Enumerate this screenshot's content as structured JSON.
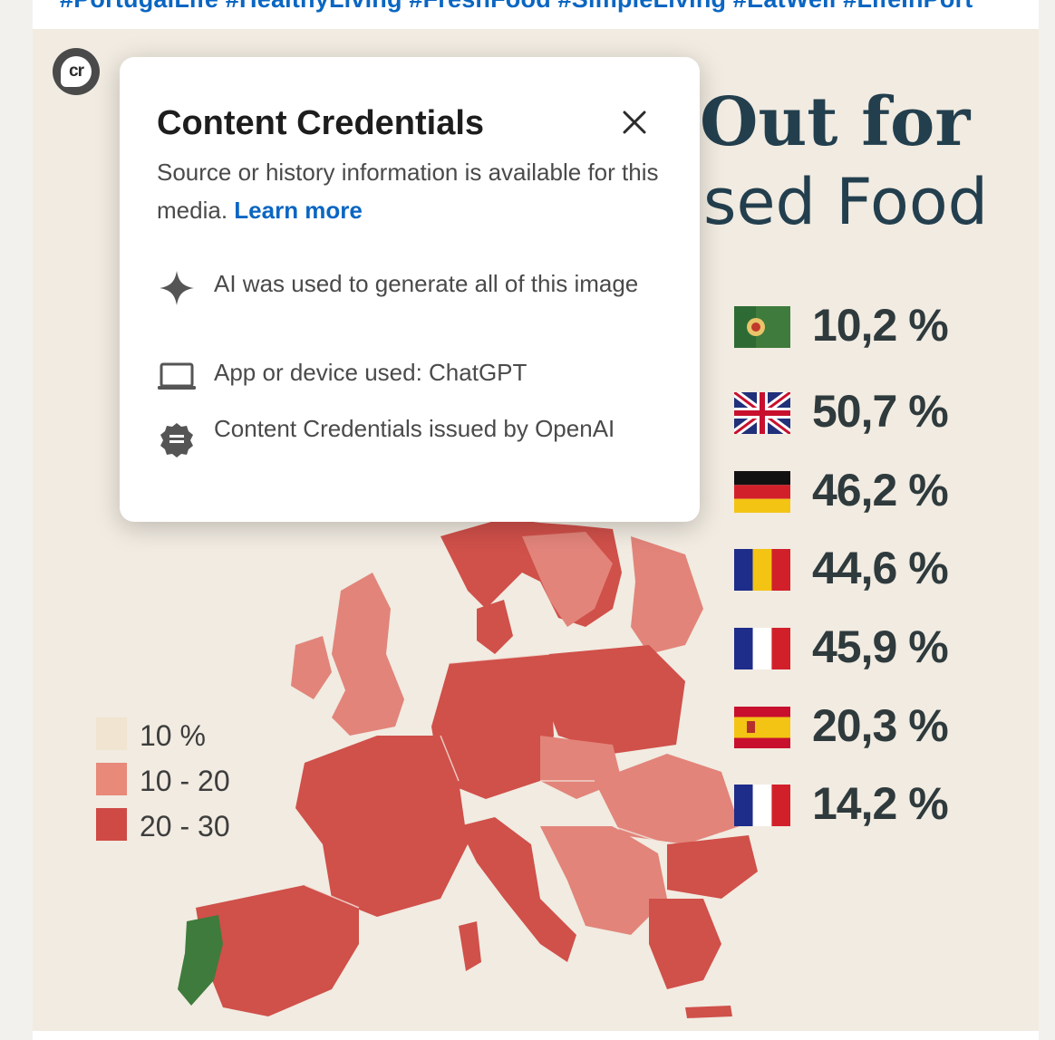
{
  "post": {
    "hashtags": "#PortugalLife #HealthyLiving #FreshFood #SimpleLiving #EatWell #LifeInPort"
  },
  "infographic": {
    "headline_line1": "Out for",
    "headline_line2": "sed Food",
    "legend": [
      {
        "label": "10 %",
        "color": "#f1e4d0"
      },
      {
        "label": "10 - 20",
        "color": "#e8897a"
      },
      {
        "label": "20 - 30",
        "color": "#cf4a45"
      }
    ],
    "stats": [
      {
        "flag": "portugal-flag-icon",
        "value": "10,2 %"
      },
      {
        "flag": "uk-flag-icon",
        "value": "50,7 %"
      },
      {
        "flag": "germany-flag-icon",
        "value": "46,2 %"
      },
      {
        "flag": "romania-flag-icon",
        "value": "44,6 %"
      },
      {
        "flag": "france-flag-icon",
        "value": "45,9 %"
      },
      {
        "flag": "spain-flag-icon",
        "value": "20,3 %"
      },
      {
        "flag": "france-flag-icon",
        "value": "14,2 %"
      }
    ],
    "colors": {
      "map_red": "#d0504a",
      "map_light_red": "#e2847a",
      "portugal_green": "#3f7b3c",
      "background": "#f1ebe1"
    }
  },
  "cr_badge": {
    "label": "cr"
  },
  "popup": {
    "title": "Content Credentials",
    "description": "Source or history information is available for this media.",
    "learn_more": "Learn more",
    "items": [
      {
        "icon": "sparkle-icon",
        "text": "AI was used to generate all of this image"
      },
      {
        "icon": "laptop-icon",
        "text": "App or device used: ChatGPT"
      },
      {
        "icon": "verified-seal-icon",
        "text": "Content Credentials issued by OpenAI"
      }
    ]
  }
}
